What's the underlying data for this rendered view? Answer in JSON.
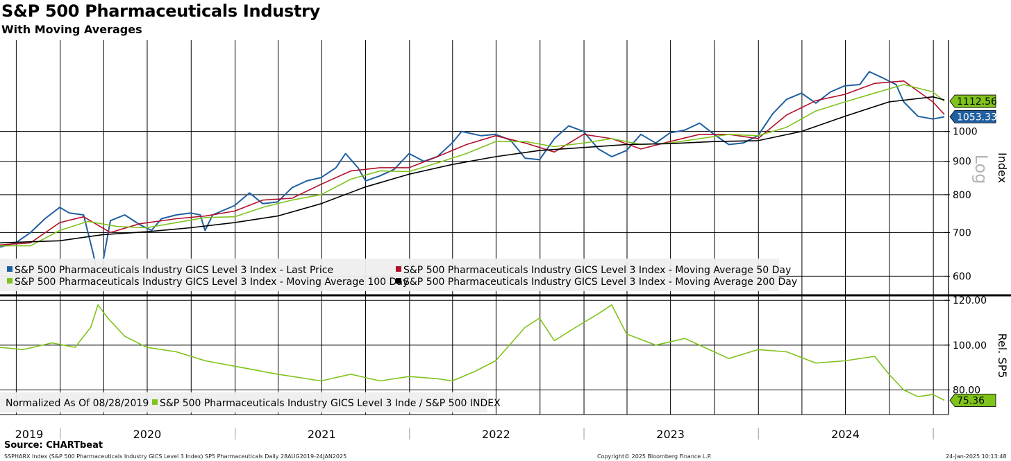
{
  "header": {
    "title": "S&P 500 Pharmaceuticals Industry",
    "subtitle": "With Moving Averages"
  },
  "footer": {
    "source": "Source: CHARTbeat",
    "ticker_line": "SSPHARX Index (S&P 500 Pharmaceuticals Industry GICS Level 3 Index) SP5 Pharmaceuticals  Daily 28AUG2019-24JAN2025",
    "copyright": "Copyright© 2025 Bloomberg Finance L.P.",
    "timestamp": "24-Jan-2025 10:13:48"
  },
  "colors": {
    "price": "#1f5fa0",
    "ma50": "#b0102a",
    "ma100": "#7fc31c",
    "ma200": "#000000",
    "relative": "#7fc31c",
    "grid": "#000000"
  },
  "chart_data": [
    {
      "type": "line",
      "panel": "upper",
      "axis_title": "Index",
      "scale_label": "Log",
      "log_scale": true,
      "ylim": [
        565,
        1380
      ],
      "yticks": [
        600,
        700,
        800,
        900,
        1000
      ],
      "ytick_labels": [
        "600",
        "700",
        "800",
        "900",
        "1000"
      ],
      "last_value_tags": [
        {
          "label": "1112.56",
          "value": 1112.56,
          "color": "#7fc31c",
          "text_color": "#000000"
        },
        {
          "label": "1053.33",
          "value": 1053.33,
          "color": "#1f5fa0",
          "text_color": "#ffffff"
        }
      ],
      "legend_position": "bottom-left",
      "series": [
        {
          "name": "S&P 500 Pharmaceuticals Industry GICS Level 3 Index - Last Price",
          "color": "#1f5fa0",
          "points": [
            [
              "2019-08-28",
              665
            ],
            [
              "2019-09-30",
              675
            ],
            [
              "2019-10-31",
              700
            ],
            [
              "2019-11-30",
              735
            ],
            [
              "2019-12-31",
              765
            ],
            [
              "2020-01-20",
              750
            ],
            [
              "2020-02-19",
              745
            ],
            [
              "2020-03-10",
              650
            ],
            [
              "2020-03-23",
              590
            ],
            [
              "2020-04-15",
              730
            ],
            [
              "2020-05-15",
              745
            ],
            [
              "2020-06-15",
              720
            ],
            [
              "2020-07-10",
              705
            ],
            [
              "2020-07-31",
              735
            ],
            [
              "2020-08-31",
              745
            ],
            [
              "2020-09-30",
              750
            ],
            [
              "2020-10-20",
              745
            ],
            [
              "2020-10-30",
              705
            ],
            [
              "2020-11-15",
              745
            ],
            [
              "2020-12-31",
              770
            ],
            [
              "2021-01-31",
              805
            ],
            [
              "2021-02-28",
              775
            ],
            [
              "2021-03-31",
              780
            ],
            [
              "2021-04-30",
              820
            ],
            [
              "2021-05-31",
              840
            ],
            [
              "2021-06-30",
              850
            ],
            [
              "2021-07-31",
              880
            ],
            [
              "2021-08-20",
              925
            ],
            [
              "2021-09-15",
              880
            ],
            [
              "2021-10-01",
              840
            ],
            [
              "2021-10-31",
              855
            ],
            [
              "2021-11-30",
              875
            ],
            [
              "2021-12-31",
              925
            ],
            [
              "2022-01-31",
              900
            ],
            [
              "2022-02-28",
              915
            ],
            [
              "2022-03-31",
              960
            ],
            [
              "2022-04-20",
              1000
            ],
            [
              "2022-05-31",
              985
            ],
            [
              "2022-06-30",
              990
            ],
            [
              "2022-07-31",
              970
            ],
            [
              "2022-08-31",
              910
            ],
            [
              "2022-09-30",
              905
            ],
            [
              "2022-10-31",
              975
            ],
            [
              "2022-11-30",
              1020
            ],
            [
              "2022-12-31",
              1000
            ],
            [
              "2023-01-31",
              940
            ],
            [
              "2023-02-28",
              915
            ],
            [
              "2023-03-31",
              935
            ],
            [
              "2023-04-30",
              990
            ],
            [
              "2023-05-31",
              960
            ],
            [
              "2023-06-30",
              995
            ],
            [
              "2023-07-31",
              1005
            ],
            [
              "2023-08-31",
              1030
            ],
            [
              "2023-09-30",
              990
            ],
            [
              "2023-10-31",
              955
            ],
            [
              "2023-11-30",
              960
            ],
            [
              "2023-12-31",
              985
            ],
            [
              "2024-01-31",
              1065
            ],
            [
              "2024-02-29",
              1120
            ],
            [
              "2024-03-31",
              1145
            ],
            [
              "2024-04-30",
              1105
            ],
            [
              "2024-05-31",
              1150
            ],
            [
              "2024-06-30",
              1175
            ],
            [
              "2024-07-31",
              1180
            ],
            [
              "2024-08-20",
              1235
            ],
            [
              "2024-09-15",
              1210
            ],
            [
              "2024-10-15",
              1180
            ],
            [
              "2024-10-31",
              1110
            ],
            [
              "2024-11-30",
              1055
            ],
            [
              "2024-12-31",
              1045
            ],
            [
              "2025-01-24",
              1053
            ]
          ]
        },
        {
          "name": "S&P 500 Pharmaceuticals Industry GICS Level 3 Index - Moving Average 50 Day",
          "color": "#b0102a",
          "points": [
            [
              "2019-08-28",
              670
            ],
            [
              "2019-10-31",
              675
            ],
            [
              "2019-12-31",
              725
            ],
            [
              "2020-02-19",
              740
            ],
            [
              "2020-04-15",
              700
            ],
            [
              "2020-06-15",
              722
            ],
            [
              "2020-08-31",
              735
            ],
            [
              "2020-10-31",
              742
            ],
            [
              "2020-12-31",
              755
            ],
            [
              "2021-02-28",
              785
            ],
            [
              "2021-04-30",
              790
            ],
            [
              "2021-06-30",
              830
            ],
            [
              "2021-08-31",
              870
            ],
            [
              "2021-10-31",
              880
            ],
            [
              "2021-12-31",
              880
            ],
            [
              "2022-02-28",
              915
            ],
            [
              "2022-04-30",
              955
            ],
            [
              "2022-06-30",
              985
            ],
            [
              "2022-08-31",
              960
            ],
            [
              "2022-10-31",
              930
            ],
            [
              "2022-12-31",
              990
            ],
            [
              "2023-02-28",
              975
            ],
            [
              "2023-04-30",
              940
            ],
            [
              "2023-06-30",
              965
            ],
            [
              "2023-08-31",
              990
            ],
            [
              "2023-10-31",
              990
            ],
            [
              "2023-12-31",
              975
            ],
            [
              "2024-02-29",
              1060
            ],
            [
              "2024-04-30",
              1115
            ],
            [
              "2024-06-30",
              1140
            ],
            [
              "2024-08-31",
              1185
            ],
            [
              "2024-10-31",
              1195
            ],
            [
              "2024-12-31",
              1110
            ],
            [
              "2025-01-24",
              1062
            ]
          ]
        },
        {
          "name": "S&P 500 Pharmaceuticals Industry GICS Level 3 Index - Moving Average 100 Day",
          "color": "#7fc31c",
          "points": [
            [
              "2019-08-28",
              668
            ],
            [
              "2019-10-31",
              668
            ],
            [
              "2019-12-31",
              705
            ],
            [
              "2020-02-28",
              728
            ],
            [
              "2020-04-30",
              715
            ],
            [
              "2020-06-30",
              712
            ],
            [
              "2020-08-31",
              725
            ],
            [
              "2020-10-31",
              738
            ],
            [
              "2020-12-31",
              740
            ],
            [
              "2021-02-28",
              765
            ],
            [
              "2021-04-30",
              785
            ],
            [
              "2021-06-30",
              800
            ],
            [
              "2021-08-31",
              845
            ],
            [
              "2021-10-31",
              870
            ],
            [
              "2021-12-31",
              868
            ],
            [
              "2022-02-28",
              895
            ],
            [
              "2022-04-30",
              925
            ],
            [
              "2022-06-30",
              965
            ],
            [
              "2022-08-31",
              965
            ],
            [
              "2022-10-31",
              948
            ],
            [
              "2022-12-31",
              960
            ],
            [
              "2023-02-28",
              975
            ],
            [
              "2023-04-30",
              955
            ],
            [
              "2023-06-30",
              960
            ],
            [
              "2023-08-31",
              975
            ],
            [
              "2023-10-31",
              990
            ],
            [
              "2023-12-31",
              985
            ],
            [
              "2024-02-29",
              1015
            ],
            [
              "2024-04-30",
              1075
            ],
            [
              "2024-06-30",
              1110
            ],
            [
              "2024-08-31",
              1145
            ],
            [
              "2024-10-31",
              1180
            ],
            [
              "2024-12-31",
              1150
            ],
            [
              "2025-01-24",
              1112
            ]
          ]
        },
        {
          "name": "S&P 500 Pharmaceuticals Industry GICS Level 3 Index - Moving Average 200 Day",
          "color": "#000000",
          "points": [
            [
              "2019-08-28",
              675
            ],
            [
              "2019-12-31",
              680
            ],
            [
              "2020-03-31",
              695
            ],
            [
              "2020-06-30",
              702
            ],
            [
              "2020-09-30",
              712
            ],
            [
              "2020-12-31",
              725
            ],
            [
              "2021-03-31",
              742
            ],
            [
              "2021-06-30",
              775
            ],
            [
              "2021-09-30",
              822
            ],
            [
              "2021-12-31",
              860
            ],
            [
              "2022-03-31",
              890
            ],
            [
              "2022-06-30",
              915
            ],
            [
              "2022-09-30",
              935
            ],
            [
              "2022-12-31",
              945
            ],
            [
              "2023-03-31",
              955
            ],
            [
              "2023-06-30",
              958
            ],
            [
              "2023-09-30",
              965
            ],
            [
              "2023-12-31",
              968
            ],
            [
              "2024-03-31",
              1000
            ],
            [
              "2024-06-30",
              1055
            ],
            [
              "2024-09-30",
              1110
            ],
            [
              "2024-12-31",
              1130
            ],
            [
              "2025-01-24",
              1118
            ]
          ]
        }
      ]
    },
    {
      "type": "line",
      "panel": "lower",
      "axis_title": "Rel. SP5",
      "ylim": [
        69,
        121
      ],
      "yticks": [
        80,
        100,
        120
      ],
      "ytick_labels": [
        "80.00",
        "100.00",
        "120.00"
      ],
      "last_value_tags": [
        {
          "label": "75.36",
          "value": 75.36,
          "color": "#7fc31c",
          "text_color": "#000000"
        }
      ],
      "legend_position": "bottom-left",
      "legend_note": "Normalized As Of 08/28/2019",
      "series": [
        {
          "name": "S&P 500 Pharmaceuticals Industry GICS Level 3 Inde / S&P 500 INDEX",
          "color": "#7fc31c",
          "points": [
            [
              "2019-08-28",
              99
            ],
            [
              "2019-10-15",
              98
            ],
            [
              "2019-12-15",
              101
            ],
            [
              "2020-02-01",
              99
            ],
            [
              "2020-03-05",
              108
            ],
            [
              "2020-03-20",
              118
            ],
            [
              "2020-04-10",
              112
            ],
            [
              "2020-05-15",
              104
            ],
            [
              "2020-06-30",
              99
            ],
            [
              "2020-08-31",
              97
            ],
            [
              "2020-10-31",
              93
            ],
            [
              "2021-01-15",
              90
            ],
            [
              "2021-03-31",
              87
            ],
            [
              "2021-06-30",
              84
            ],
            [
              "2021-08-31",
              87
            ],
            [
              "2021-10-31",
              84
            ],
            [
              "2021-12-31",
              86
            ],
            [
              "2022-02-28",
              85
            ],
            [
              "2022-03-31",
              84
            ],
            [
              "2022-05-15",
              88
            ],
            [
              "2022-06-30",
              93
            ],
            [
              "2022-08-31",
              108
            ],
            [
              "2022-09-30",
              112
            ],
            [
              "2022-10-31",
              102
            ],
            [
              "2022-12-15",
              108
            ],
            [
              "2023-01-31",
              114
            ],
            [
              "2023-02-28",
              118
            ],
            [
              "2023-03-31",
              105
            ],
            [
              "2023-05-31",
              100
            ],
            [
              "2023-07-31",
              103
            ],
            [
              "2023-09-30",
              97
            ],
            [
              "2023-10-31",
              94
            ],
            [
              "2023-12-31",
              98
            ],
            [
              "2024-02-29",
              97
            ],
            [
              "2024-04-30",
              92
            ],
            [
              "2024-06-30",
              93
            ],
            [
              "2024-08-31",
              95
            ],
            [
              "2024-09-30",
              87
            ],
            [
              "2024-10-31",
              80
            ],
            [
              "2024-11-30",
              77
            ],
            [
              "2024-12-31",
              78
            ],
            [
              "2025-01-24",
              75.36
            ]
          ]
        }
      ]
    }
  ],
  "x_axis": {
    "range": [
      "2019-08-28",
      "2025-01-24"
    ],
    "year_labels": [
      {
        "label": "2019",
        "center": "2019-10-28"
      },
      {
        "label": "2020",
        "center": "2020-07-01"
      },
      {
        "label": "2021",
        "center": "2021-07-01"
      },
      {
        "label": "2022",
        "center": "2022-07-01"
      },
      {
        "label": "2023",
        "center": "2023-07-01"
      },
      {
        "label": "2024",
        "center": "2024-07-01"
      }
    ],
    "year_boundaries": [
      "2020-01-01",
      "2021-01-01",
      "2022-01-01",
      "2023-01-01",
      "2024-01-01",
      "2025-01-01"
    ],
    "gridline_interval_months": 3
  }
}
